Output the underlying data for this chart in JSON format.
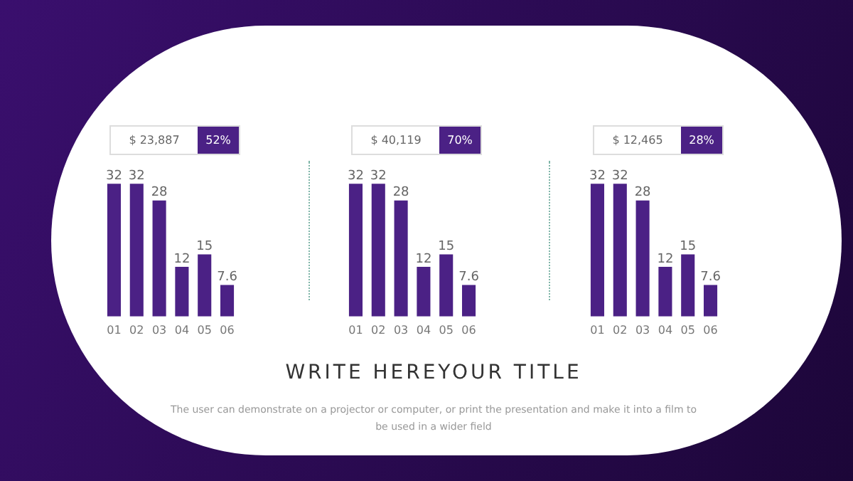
{
  "chart_data": [
    {
      "type": "bar",
      "title": "$ 23,887",
      "subtitle": "52%",
      "categories": [
        "01",
        "02",
        "03",
        "04",
        "05",
        "06"
      ],
      "values": [
        32,
        32,
        28,
        12,
        15,
        7.6
      ],
      "color": "#4b2185",
      "data_labels": true,
      "tick_labels": "x",
      "grid": false,
      "legend": false
    },
    {
      "type": "bar",
      "title": "$ 40,119",
      "subtitle": "70%",
      "categories": [
        "01",
        "02",
        "03",
        "04",
        "05",
        "06"
      ],
      "values": [
        32,
        32,
        28,
        12,
        15,
        7.6
      ],
      "color": "#4b2185",
      "data_labels": true,
      "tick_labels": "x",
      "grid": false,
      "legend": false
    },
    {
      "type": "bar",
      "title": "$ 12,465",
      "subtitle": "28%",
      "categories": [
        "01",
        "02",
        "03",
        "04",
        "05",
        "06"
      ],
      "values": [
        32,
        32,
        28,
        12,
        15,
        7.6
      ],
      "color": "#4b2185",
      "data_labels": true,
      "tick_labels": "x",
      "grid": false,
      "legend": false
    },
    {
      "type": "other",
      "title": "WRITE HEREYOUR TITLE",
      "annotations": [
        "The user can demonstrate on a projector or computer, or print the presentation and make it into a film to be used in a wider field"
      ]
    }
  ]
}
